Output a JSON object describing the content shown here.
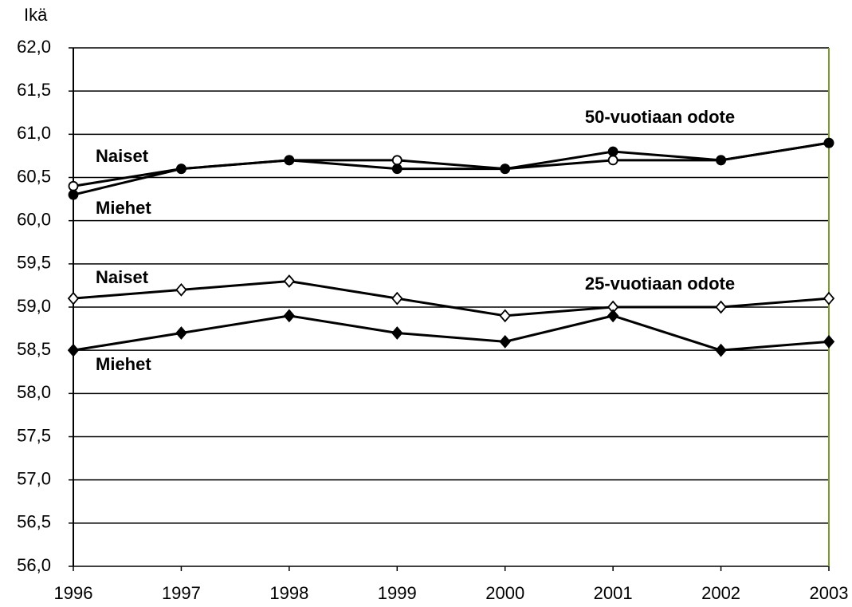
{
  "chart_data": {
    "type": "line",
    "y_axis_label": "Ikä",
    "categories": [
      "1996",
      "1997",
      "1998",
      "1999",
      "2000",
      "2001",
      "2002",
      "2003"
    ],
    "ylim": [
      56,
      62
    ],
    "yticks": [
      {
        "value": 56,
        "label": "56,0"
      },
      {
        "value": 56.5,
        "label": "56,5"
      },
      {
        "value": 57,
        "label": "57,0"
      },
      {
        "value": 57.5,
        "label": "57,5"
      },
      {
        "value": 58,
        "label": "58,0"
      },
      {
        "value": 58.5,
        "label": "58,5"
      },
      {
        "value": 59,
        "label": "59,0"
      },
      {
        "value": 59.5,
        "label": "59,5"
      },
      {
        "value": 60,
        "label": "60,0"
      },
      {
        "value": 60.5,
        "label": "60,5"
      },
      {
        "value": 61,
        "label": "61,0"
      },
      {
        "value": 61.5,
        "label": "61,5"
      },
      {
        "value": 62,
        "label": "62,0"
      }
    ],
    "grid": true,
    "annotations": [
      "50-vuotiaan odote",
      "25-vuotiaan odote"
    ],
    "series": [
      {
        "name": "Naiset",
        "color": "#000000",
        "marker": "circle",
        "filled": false,
        "values": [
          60.4,
          60.6,
          60.7,
          60.7,
          60.6,
          60.7,
          60.7,
          60.9
        ]
      },
      {
        "name": "Miehet",
        "color": "#000000",
        "marker": "circle",
        "filled": true,
        "values": [
          60.3,
          60.6,
          60.7,
          60.6,
          60.6,
          60.8,
          60.7,
          60.9
        ]
      },
      {
        "name": "Naiset",
        "color": "#000000",
        "marker": "diamond",
        "filled": false,
        "values": [
          59.1,
          59.2,
          59.3,
          59.1,
          58.9,
          59.0,
          59.0,
          59.1
        ]
      },
      {
        "name": "Miehet",
        "color": "#000000",
        "marker": "diamond",
        "filled": true,
        "values": [
          58.5,
          58.7,
          58.9,
          58.7,
          58.6,
          58.9,
          58.5,
          58.6
        ]
      }
    ]
  }
}
